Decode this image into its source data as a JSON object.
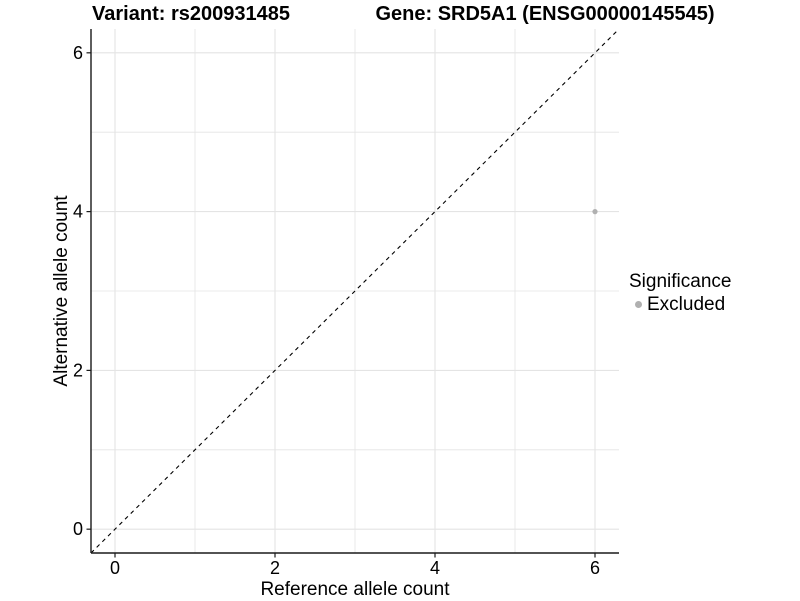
{
  "chart_data": {
    "type": "scatter",
    "title_left": "Variant: rs200931485",
    "title_right": "Gene: SRD5A1 (ENSG00000145545)",
    "xlabel": "Reference allele count",
    "ylabel": "Alternative allele count",
    "xlim": [
      0,
      6
    ],
    "ylim": [
      0,
      6
    ],
    "x_ticks": [
      0,
      2,
      4,
      6
    ],
    "y_ticks": [
      0,
      2,
      4,
      6
    ],
    "x_gridlines": [
      0,
      1,
      2,
      3,
      4,
      5,
      6
    ],
    "y_gridlines": [
      0,
      1,
      2,
      3,
      4,
      5,
      6
    ],
    "axis_expansion": 0.3,
    "grid": "on",
    "legend_position": "right",
    "colors": {
      "background": "#ffffff",
      "gridline": "#e4e4e4",
      "axis_line": "#1a1a1a",
      "identity_line": "#000000",
      "excluded": "#b0b0b0",
      "text": "#000000"
    },
    "identity_line": {
      "slope": 1,
      "intercept": 0,
      "style": "dashed"
    },
    "series": [
      {
        "name": "Excluded",
        "color": "#b0b0b0",
        "points": [
          {
            "x": 6,
            "y": 4
          }
        ]
      }
    ],
    "legend": {
      "title": "Significance",
      "entries": [
        {
          "label": "Excluded",
          "color": "#b0b0b0",
          "marker": "dot"
        }
      ]
    }
  }
}
